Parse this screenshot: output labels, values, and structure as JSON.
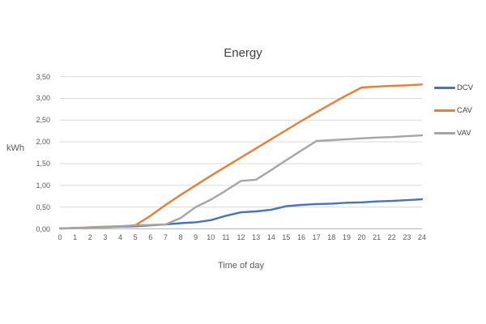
{
  "chart_data": {
    "type": "line",
    "title": "Energy",
    "xlabel": "Time of day",
    "ylabel": "kWh",
    "x": [
      0,
      1,
      2,
      3,
      4,
      5,
      6,
      7,
      8,
      9,
      10,
      11,
      12,
      13,
      14,
      15,
      16,
      17,
      18,
      19,
      20,
      21,
      22,
      23,
      24
    ],
    "series": [
      {
        "name": "DCV",
        "color": "#4472C4",
        "values": [
          0.01,
          0.02,
          0.03,
          0.04,
          0.05,
          0.06,
          0.08,
          0.1,
          0.13,
          0.15,
          0.2,
          0.3,
          0.38,
          0.4,
          0.44,
          0.52,
          0.55,
          0.57,
          0.58,
          0.6,
          0.61,
          0.63,
          0.64,
          0.66,
          0.68
        ]
      },
      {
        "name": "CAV",
        "color": "#ED7D31",
        "values": [
          0.01,
          0.02,
          0.03,
          0.05,
          0.06,
          0.08,
          0.3,
          0.55,
          0.78,
          1.0,
          1.22,
          1.43,
          1.64,
          1.85,
          2.06,
          2.27,
          2.48,
          2.68,
          2.88,
          3.07,
          3.25,
          3.27,
          3.29,
          3.3,
          3.32
        ]
      },
      {
        "name": "VAV",
        "color": "#A5A5A5",
        "values": [
          0.01,
          0.02,
          0.04,
          0.05,
          0.06,
          0.08,
          0.09,
          0.1,
          0.25,
          0.5,
          0.67,
          0.88,
          1.1,
          1.13,
          1.35,
          1.58,
          1.8,
          2.02,
          2.04,
          2.06,
          2.08,
          2.1,
          2.11,
          2.13,
          2.15
        ]
      }
    ],
    "ylim": [
      0,
      3.5
    ],
    "ytick_step": 0.5,
    "ytick_labels": [
      "0,00",
      "0,50",
      "1,00",
      "1,50",
      "2,00",
      "2,50",
      "3,00",
      "3,50"
    ],
    "xlim": [
      0,
      24
    ],
    "grid": "horizontal",
    "legend_position": "right",
    "decimal_separator": ","
  },
  "colors": {
    "background": "#FFFFFF",
    "grid": "#D9D9D9",
    "axis": "#BFBFBF",
    "title_text": "#404040",
    "tick_text": "#595959"
  }
}
